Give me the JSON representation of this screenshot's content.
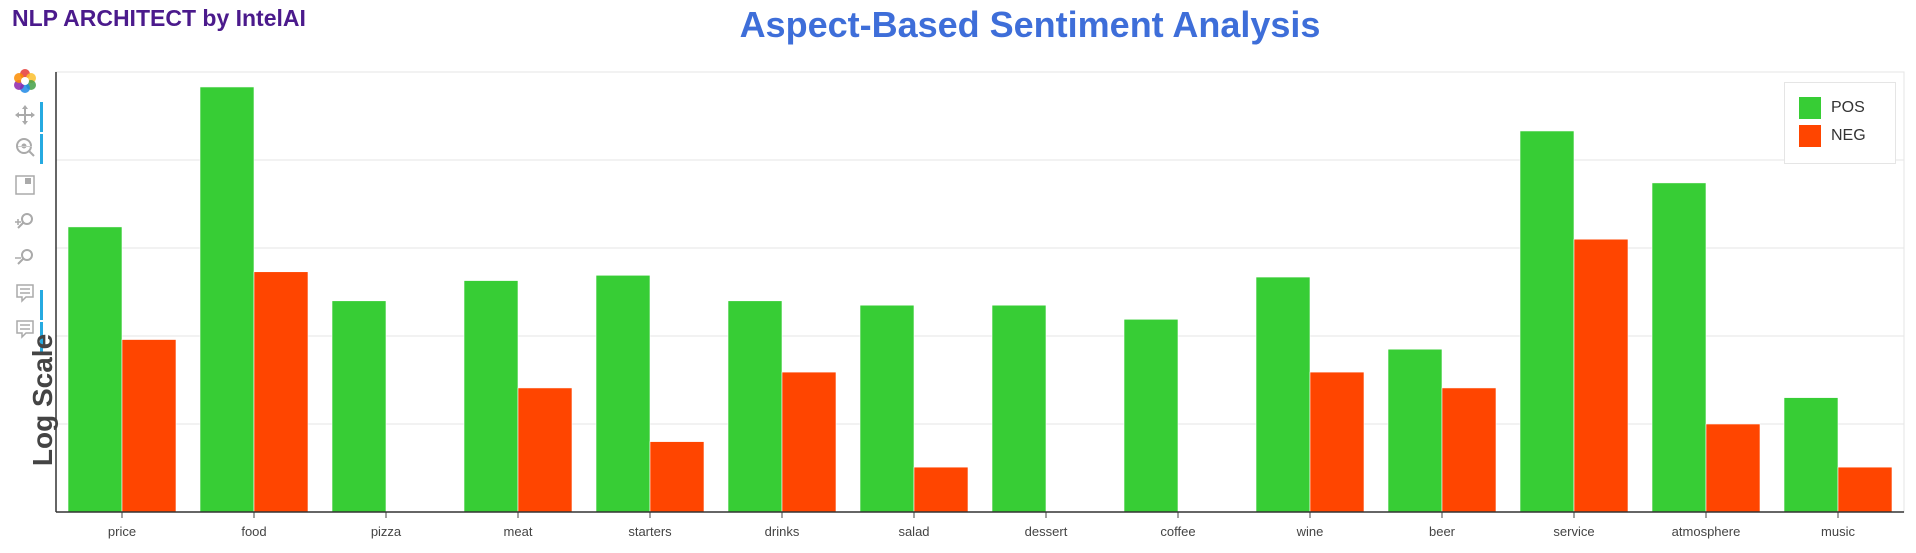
{
  "brand": "NLP ARCHITECT by IntelAI",
  "title": "Aspect-Based Sentiment Analysis",
  "toolbar": {
    "tools": [
      {
        "name": "bokeh-logo-icon"
      },
      {
        "name": "pan-tool-icon"
      },
      {
        "name": "wheel-zoom-tool-icon"
      },
      {
        "name": "save-tool-icon"
      },
      {
        "name": "zoom-in-tool-icon"
      },
      {
        "name": "zoom-out-tool-icon"
      },
      {
        "name": "hover-tool-icon"
      },
      {
        "name": "hover-tool-icon-2"
      }
    ]
  },
  "colors": {
    "pos": "#37cd35",
    "neg": "#ff4500",
    "title": "#3e6ed9",
    "brand": "#4b1a8c"
  },
  "chart_data": {
    "type": "bar",
    "ylabel": "Log Scale",
    "xlabel": "",
    "y_scale": "log",
    "grid": "horizontal",
    "legend_position": "top-right",
    "categories": [
      "price",
      "food",
      "pizza",
      "meat",
      "starters",
      "drinks",
      "salad",
      "dessert",
      "coffee",
      "wine",
      "beer",
      "service",
      "atmosphere",
      "music"
    ],
    "series": [
      {
        "name": "POS",
        "values": [
          3.24,
          4.83,
          2.4,
          2.63,
          2.69,
          2.4,
          2.35,
          2.35,
          2.19,
          2.67,
          1.85,
          4.33,
          3.74,
          1.3
        ]
      },
      {
        "name": "NEG",
        "values": [
          1.96,
          2.73,
          0,
          1.41,
          0.8,
          1.59,
          0.51,
          0,
          0,
          1.59,
          1.41,
          3.1,
          1.0,
          0.51
        ]
      }
    ],
    "ylim": [
      0,
      5
    ]
  }
}
